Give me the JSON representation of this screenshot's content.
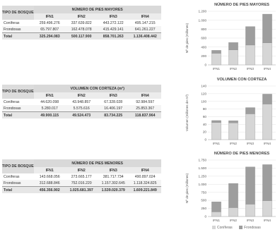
{
  "tables": [
    {
      "key": "mayores",
      "category_header": "TIPO DE BOSQUE",
      "group_header": "NÚMERO DE PIES MAYORES",
      "columns": [
        "IFN1",
        "IFN2",
        "IFN3",
        "IFN4"
      ],
      "rows": [
        {
          "label": "Coníferas",
          "values": [
            "259.496.276",
            "337.639.822",
            "443.272.122",
            "495.147.215"
          ]
        },
        {
          "label": "Frondosas",
          "values": [
            "65.797.807",
            "162.478.078",
            "415.429.141",
            "641.261.227"
          ]
        },
        {
          "label": "Total",
          "values": [
            "325.294.083",
            "500.117.900",
            "858.701.263",
            "1.136.408.442"
          ],
          "total": true
        }
      ]
    },
    {
      "key": "volumen",
      "category_header": "TIPO DE BOSQUE",
      "group_header": "VOLUMEN CON CORTEZA (m³)",
      "columns": [
        "IFN1",
        "IFN2",
        "IFN3",
        "IFN4"
      ],
      "rows": [
        {
          "label": "Coníferas",
          "values": [
            "44.620.098",
            "43.948.857",
            "67.328.028",
            "92.984.597"
          ]
        },
        {
          "label": "Frondosas",
          "values": [
            "5.280.017",
            "5.575.616",
            "16.406.197",
            "25.853.367"
          ]
        },
        {
          "label": "Total",
          "values": [
            "49.900.115",
            "49.524.473",
            "83.734.225",
            "118.837.964"
          ],
          "total": true
        }
      ]
    },
    {
      "key": "menores",
      "category_header": "TIPO DE BOSQUE",
      "group_header": "NÚMERO DE PIES MENORES",
      "columns": [
        "IFN1",
        "IFN2",
        "IFN3",
        "IFN4"
      ],
      "rows": [
        {
          "label": "Coníferas",
          "values": [
            "143.668.056",
            "273.665.177",
            "381.717.734",
            "490.897.024"
          ]
        },
        {
          "label": "Frondosas",
          "values": [
            "312.688.846",
            "752.016.220",
            "1.157.302.645",
            "1.118.324.825"
          ]
        },
        {
          "label": "Total",
          "values": [
            "456.356.902",
            "1.025.681.397",
            "1.539.020.379",
            "1.609.221.849"
          ],
          "total": true
        }
      ]
    }
  ],
  "chart_data": [
    {
      "type": "bar",
      "stacked": true,
      "title": "NÚMERO DE PIES MAYORES",
      "ylabel": "Nº de pies (millones)",
      "xlabel": "",
      "categories": [
        "IFN1",
        "IFN2",
        "IFN3",
        "IFN4"
      ],
      "series": [
        {
          "name": "Coníferas",
          "values": [
            259.5,
            337.6,
            443.3,
            495.1
          ]
        },
        {
          "name": "Frondosas",
          "values": [
            65.8,
            162.5,
            415.4,
            641.3
          ]
        }
      ],
      "ylim": [
        0,
        1200
      ],
      "yticks": [
        0,
        200,
        400,
        600,
        800,
        1000,
        1200
      ],
      "ytick_labels": [
        "0",
        "200",
        "400",
        "600",
        "800",
        "1.000",
        "1.200"
      ],
      "grid": true
    },
    {
      "type": "bar",
      "stacked": true,
      "title": "VOLUMEN CON CORTEZA",
      "ylabel": "Volumen (millones de m³)",
      "xlabel": "",
      "categories": [
        "IFN1",
        "IFN2",
        "IFN3",
        "IFN4"
      ],
      "series": [
        {
          "name": "Coníferas",
          "values": [
            44.6,
            43.9,
            67.3,
            93.0
          ]
        },
        {
          "name": "Frondosas",
          "values": [
            5.3,
            5.6,
            16.4,
            25.9
          ]
        }
      ],
      "ylim": [
        0,
        140
      ],
      "yticks": [
        0,
        20,
        40,
        60,
        80,
        100,
        120,
        140
      ],
      "ytick_labels": [
        "0",
        "20",
        "40",
        "60",
        "80",
        "100",
        "120",
        "140"
      ],
      "grid": true
    },
    {
      "type": "bar",
      "stacked": true,
      "title": "NÚMERO DE PIES MENORES",
      "ylabel": "Nº de pies (millones)",
      "xlabel": "",
      "categories": [
        "IFN1",
        "IFN2",
        "IFN3",
        "IFN4"
      ],
      "series": [
        {
          "name": "Coníferas",
          "values": [
            143.7,
            273.7,
            381.7,
            490.9
          ]
        },
        {
          "name": "Frondosas",
          "values": [
            312.7,
            752.0,
            1157.3,
            1118.3
          ]
        }
      ],
      "ylim": [
        0,
        1750
      ],
      "yticks": [
        0,
        250,
        500,
        750,
        1000,
        1250,
        1500,
        1750
      ],
      "ytick_labels": [
        "0",
        "250",
        "500",
        "750",
        "1.000",
        "1.250",
        "1.500",
        "1.750"
      ],
      "grid": true
    }
  ],
  "legend": [
    {
      "name": "Coníferas",
      "color": "#d6d6d6"
    },
    {
      "name": "Frondosas",
      "color": "#9e9e9e"
    }
  ],
  "colors": {
    "conifers": "#d6d6d6",
    "broadleaf": "#9e9e9e",
    "grid": "#e3e3e3",
    "axis": "#999999"
  }
}
